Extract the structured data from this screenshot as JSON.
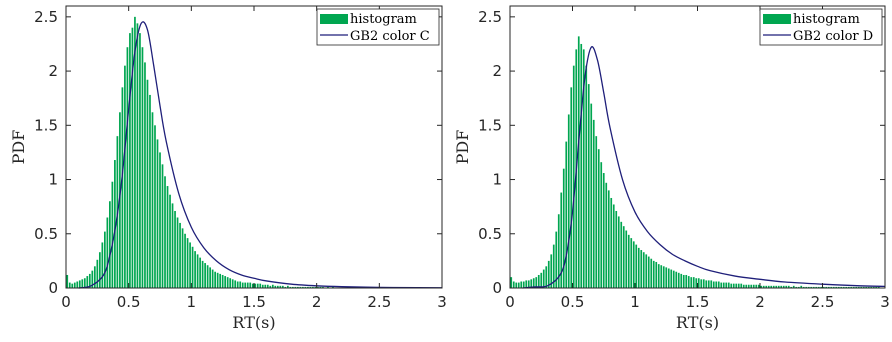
{
  "chart_data": [
    {
      "type": "bar",
      "xlabel": "RT(s)",
      "ylabel": "PDF",
      "xlim": [
        0,
        3
      ],
      "ylim": [
        0,
        2.6
      ],
      "xticks": [
        0,
        0.5,
        1,
        1.5,
        2,
        2.5,
        3
      ],
      "xtick_labels": [
        "0",
        "0.5",
        "1",
        "1.5",
        "2",
        "2.5",
        "3"
      ],
      "yticks": [
        0,
        0.5,
        1,
        1.5,
        2,
        2.5
      ],
      "ytick_labels": [
        "0",
        "0.5",
        "1",
        "1.5",
        "2",
        "2.5"
      ],
      "grid": false,
      "legend_position": "top-right",
      "series": [
        {
          "name": "histogram",
          "kind": "bar",
          "color": "#00a650"
        },
        {
          "name": "GB2 color C",
          "kind": "line",
          "color": "#1f1f7a"
        }
      ],
      "histogram": {
        "bin_width": 0.02,
        "start": 0,
        "values": [
          0.12,
          0.05,
          0.04,
          0.05,
          0.06,
          0.07,
          0.08,
          0.09,
          0.11,
          0.13,
          0.16,
          0.2,
          0.26,
          0.33,
          0.42,
          0.52,
          0.65,
          0.8,
          0.98,
          1.18,
          1.4,
          1.62,
          1.85,
          2.05,
          2.22,
          2.35,
          2.4,
          2.5,
          2.44,
          2.35,
          2.22,
          2.08,
          1.92,
          1.78,
          1.62,
          1.5,
          1.37,
          1.25,
          1.14,
          1.03,
          0.94,
          0.86,
          0.78,
          0.71,
          0.65,
          0.6,
          0.55,
          0.5,
          0.46,
          0.42,
          0.38,
          0.34,
          0.31,
          0.28,
          0.25,
          0.23,
          0.21,
          0.19,
          0.17,
          0.15,
          0.14,
          0.13,
          0.12,
          0.11,
          0.1,
          0.09,
          0.08,
          0.07,
          0.06,
          0.06,
          0.05,
          0.05,
          0.05,
          0.05,
          0.04,
          0.04,
          0.04,
          0.04,
          0.03,
          0.03,
          0.03,
          0.02,
          0.03,
          0.02,
          0.02,
          0.02,
          0.02,
          0.01,
          0.02,
          0.01,
          0.01,
          0.01,
          0.01,
          0.01,
          0.01,
          0.01,
          0.01,
          0.01,
          0.01,
          0.01,
          0.01,
          0.01,
          0.01,
          0.0,
          0.01,
          0.0,
          0.01,
          0.0,
          0.0,
          0.0,
          0.0,
          0.0,
          0.0,
          0.0,
          0.0,
          0.0,
          0.0,
          0.0,
          0.0,
          0.0,
          0.0,
          0.0,
          0.0,
          0.0,
          0.0,
          0.0,
          0.0,
          0.0,
          0.0,
          0.0,
          0.0,
          0.0,
          0.0,
          0.0,
          0.0,
          0.0,
          0.0,
          0.0,
          0.0,
          0.0,
          0.0,
          0.0,
          0.0,
          0.0,
          0.0,
          0.0,
          0.0,
          0.0,
          0.0,
          0.0
        ]
      },
      "curve": {
        "x": [
          0.1,
          0.2,
          0.3,
          0.35,
          0.4,
          0.45,
          0.5,
          0.55,
          0.6,
          0.65,
          0.7,
          0.75,
          0.8,
          0.9,
          1.0,
          1.1,
          1.2,
          1.3,
          1.4,
          1.5,
          1.6,
          1.8,
          2.0,
          2.2,
          2.5,
          2.8,
          3.0
        ],
        "y": [
          0.0,
          0.02,
          0.12,
          0.3,
          0.6,
          1.05,
          1.65,
          2.18,
          2.44,
          2.38,
          2.05,
          1.68,
          1.35,
          0.87,
          0.56,
          0.37,
          0.25,
          0.17,
          0.12,
          0.09,
          0.065,
          0.035,
          0.02,
          0.012,
          0.006,
          0.003,
          0.002
        ]
      }
    },
    {
      "type": "bar",
      "xlabel": "RT(s)",
      "ylabel": "PDF",
      "xlim": [
        0,
        3
      ],
      "ylim": [
        0,
        2.6
      ],
      "xticks": [
        0,
        0.5,
        1,
        1.5,
        2,
        2.5,
        3
      ],
      "xtick_labels": [
        "0",
        "0.5",
        "1",
        "1.5",
        "2",
        "2.5",
        "3"
      ],
      "yticks": [
        0,
        0.5,
        1,
        1.5,
        2,
        2.5
      ],
      "ytick_labels": [
        "0",
        "0.5",
        "1",
        "1.5",
        "2",
        "2.5"
      ],
      "grid": false,
      "legend_position": "top-right",
      "series": [
        {
          "name": "histogram",
          "kind": "bar",
          "color": "#00a650"
        },
        {
          "name": "GB2 color D",
          "kind": "line",
          "color": "#1f1f7a"
        }
      ],
      "histogram": {
        "bin_width": 0.02,
        "start": 0,
        "values": [
          0.1,
          0.06,
          0.05,
          0.05,
          0.06,
          0.06,
          0.07,
          0.07,
          0.08,
          0.09,
          0.1,
          0.12,
          0.14,
          0.17,
          0.2,
          0.25,
          0.31,
          0.4,
          0.52,
          0.68,
          0.88,
          1.1,
          1.35,
          1.6,
          1.85,
          2.05,
          2.2,
          2.32,
          2.25,
          2.2,
          2.05,
          1.88,
          1.7,
          1.55,
          1.4,
          1.28,
          1.16,
          1.06,
          0.97,
          0.9,
          0.83,
          0.77,
          0.71,
          0.66,
          0.61,
          0.57,
          0.53,
          0.49,
          0.46,
          0.43,
          0.4,
          0.37,
          0.35,
          0.33,
          0.31,
          0.29,
          0.27,
          0.25,
          0.24,
          0.22,
          0.21,
          0.2,
          0.19,
          0.18,
          0.17,
          0.16,
          0.15,
          0.14,
          0.13,
          0.12,
          0.12,
          0.11,
          0.1,
          0.1,
          0.09,
          0.09,
          0.08,
          0.08,
          0.07,
          0.07,
          0.07,
          0.06,
          0.06,
          0.06,
          0.05,
          0.05,
          0.05,
          0.05,
          0.04,
          0.04,
          0.04,
          0.04,
          0.04,
          0.03,
          0.03,
          0.03,
          0.03,
          0.03,
          0.03,
          0.03,
          0.02,
          0.02,
          0.02,
          0.02,
          0.02,
          0.02,
          0.02,
          0.02,
          0.02,
          0.02,
          0.02,
          0.02,
          0.01,
          0.02,
          0.01,
          0.01,
          0.02,
          0.01,
          0.01,
          0.01,
          0.01,
          0.01,
          0.01,
          0.01,
          0.01,
          0.01,
          0.01,
          0.01,
          0.01,
          0.01,
          0.01,
          0.01,
          0.01,
          0.01,
          0.01,
          0.01,
          0.01,
          0.01,
          0.01,
          0.01,
          0.01,
          0.01,
          0.01,
          0.01,
          0.01,
          0.01,
          0.01,
          0.01,
          0.0,
          0.0
        ]
      },
      "curve": {
        "x": [
          0.1,
          0.2,
          0.3,
          0.4,
          0.45,
          0.5,
          0.55,
          0.6,
          0.65,
          0.7,
          0.75,
          0.8,
          0.9,
          1.0,
          1.1,
          1.2,
          1.3,
          1.4,
          1.5,
          1.6,
          1.8,
          2.0,
          2.2,
          2.5,
          2.8,
          3.0
        ],
        "y": [
          0.0,
          0.01,
          0.02,
          0.12,
          0.3,
          0.7,
          1.35,
          1.95,
          2.22,
          2.1,
          1.8,
          1.48,
          1.0,
          0.7,
          0.52,
          0.4,
          0.31,
          0.25,
          0.2,
          0.16,
          0.11,
          0.08,
          0.055,
          0.035,
          0.02,
          0.015
        ]
      }
    }
  ]
}
